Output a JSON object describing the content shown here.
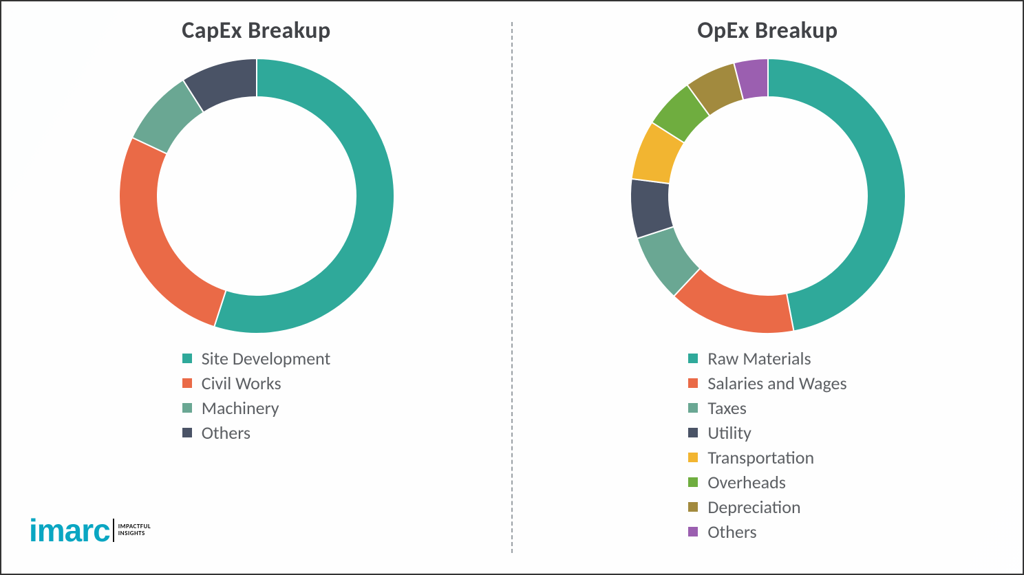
{
  "background_color": "#fcfcfc",
  "border_color": "#333333",
  "divider_color": "#9aa0a5",
  "legend_text_color": "#5c5f63",
  "title_color": "#414347",
  "title_fontsize": 34,
  "legend_fontsize": 26,
  "logo": {
    "text": "imarc",
    "color": "#0aa6c2",
    "tagline_line1": "IMPACTFUL",
    "tagline_line2": "INSIGHTS"
  },
  "capex": {
    "title": "CapEx Breakup",
    "type": "donut",
    "inner_radius_ratio": 0.72,
    "stroke_color": "#ffffff",
    "stroke_width": 2,
    "start_angle_deg": 0,
    "series": [
      {
        "label": "Site Development",
        "value": 55,
        "color": "#2fa99a"
      },
      {
        "label": "Civil Works",
        "value": 27,
        "color": "#ea6a47"
      },
      {
        "label": "Machinery",
        "value": 9,
        "color": "#6aa793"
      },
      {
        "label": "Others",
        "value": 9,
        "color": "#4a5366"
      }
    ]
  },
  "opex": {
    "title": "OpEx Breakup",
    "type": "donut",
    "inner_radius_ratio": 0.72,
    "stroke_color": "#ffffff",
    "stroke_width": 2,
    "start_angle_deg": 0,
    "series": [
      {
        "label": "Raw Materials",
        "value": 47,
        "color": "#2fa99a"
      },
      {
        "label": "Salaries and Wages",
        "value": 15,
        "color": "#ea6a47"
      },
      {
        "label": "Taxes",
        "value": 8,
        "color": "#6aa793"
      },
      {
        "label": "Utility",
        "value": 7,
        "color": "#4a5366"
      },
      {
        "label": "Transportation",
        "value": 7,
        "color": "#f2b531"
      },
      {
        "label": "Overheads",
        "value": 6,
        "color": "#6fad3f"
      },
      {
        "label": "Depreciation",
        "value": 6,
        "color": "#a28a3e"
      },
      {
        "label": "Others",
        "value": 4,
        "color": "#9b5fb0"
      }
    ]
  }
}
